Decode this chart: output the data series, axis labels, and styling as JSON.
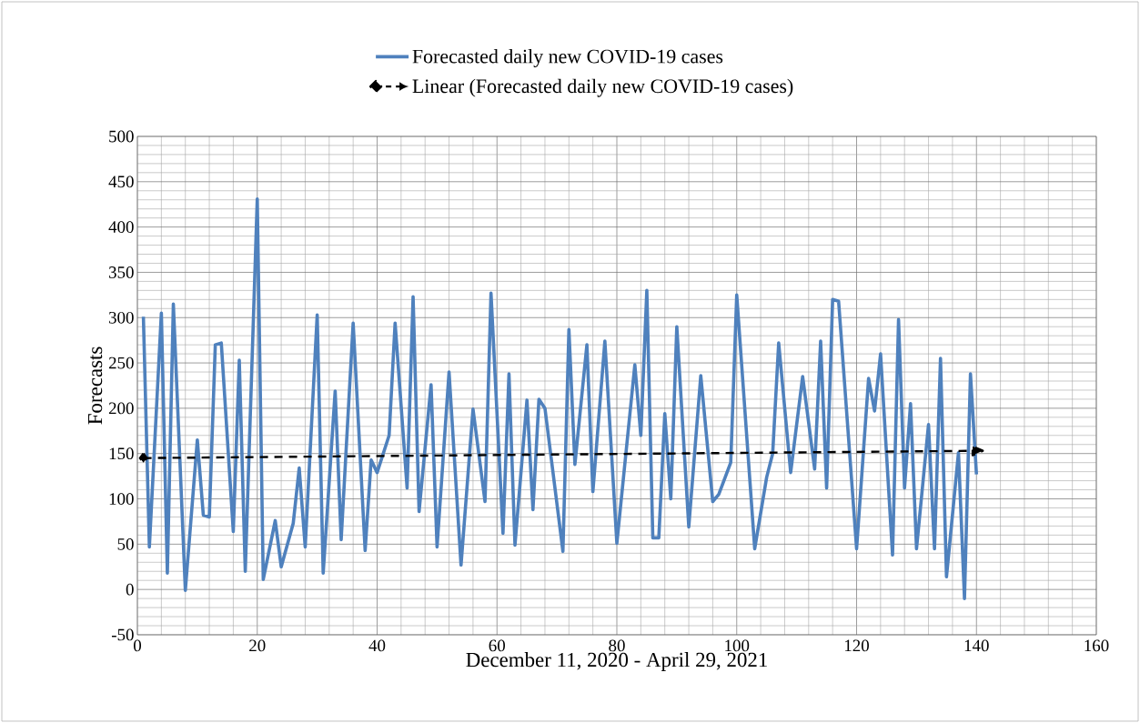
{
  "chart_data": {
    "type": "line",
    "xlabel": "December 11, 2020 - April 29, 2021",
    "ylabel": "Forecasts",
    "xlim": [
      0,
      160
    ],
    "xticks": [
      0,
      20,
      40,
      60,
      80,
      100,
      120,
      140,
      160
    ],
    "ylim": [
      -50,
      500
    ],
    "yticks": [
      -50,
      0,
      50,
      100,
      150,
      200,
      250,
      300,
      350,
      400,
      450,
      500
    ],
    "grid": true,
    "legend": "top",
    "series": [
      {
        "name": "Forecasted daily new COVID-19 cases",
        "color": "#4f81bd",
        "line_style": "solid",
        "marker": "none",
        "x": [
          1,
          2,
          4,
          5,
          6,
          8,
          10,
          11,
          12,
          13,
          14,
          16,
          17,
          18,
          20,
          21,
          23,
          24,
          26,
          27,
          28,
          30,
          31,
          33,
          34,
          36,
          38,
          39,
          40,
          42,
          43,
          45,
          46,
          47,
          49,
          50,
          52,
          54,
          56,
          58,
          59,
          61,
          62,
          63,
          65,
          66,
          67,
          68,
          71,
          72,
          73,
          75,
          76,
          78,
          80,
          83,
          84,
          85,
          86,
          87,
          88,
          89,
          90,
          92,
          94,
          96,
          97,
          99,
          100,
          103,
          105,
          106,
          107,
          109,
          111,
          113,
          114,
          115,
          116,
          117,
          120,
          122,
          123,
          124,
          126,
          127,
          128,
          129,
          130,
          132,
          133,
          134,
          135,
          137,
          138,
          139,
          140
        ],
        "values": [
          301,
          47,
          305,
          18,
          315,
          -1,
          165,
          82,
          80,
          270,
          272,
          64,
          253,
          20,
          431,
          11,
          76,
          25,
          73,
          134,
          47,
          303,
          18,
          219,
          55,
          294,
          43,
          143,
          129,
          170,
          294,
          112,
          323,
          86,
          226,
          47,
          240,
          27,
          199,
          97,
          327,
          62,
          238,
          49,
          209,
          88,
          210,
          200,
          42,
          287,
          138,
          270,
          108,
          274,
          51,
          248,
          170,
          330,
          57,
          57,
          194,
          100,
          290,
          69,
          236,
          97,
          105,
          140,
          325,
          45,
          124,
          150,
          272,
          129,
          235,
          133,
          274,
          112,
          320,
          318,
          45,
          233,
          197,
          260,
          38,
          298,
          112,
          205,
          45,
          182,
          45,
          255,
          14,
          151,
          -10,
          238,
          127
        ]
      },
      {
        "name": "Linear (Forecasted daily new COVID-19 cases)",
        "color": "#000000",
        "line_style": "dashed",
        "marker": "diamond",
        "x": [
          1,
          140
        ],
        "values": [
          145,
          153
        ]
      }
    ]
  }
}
